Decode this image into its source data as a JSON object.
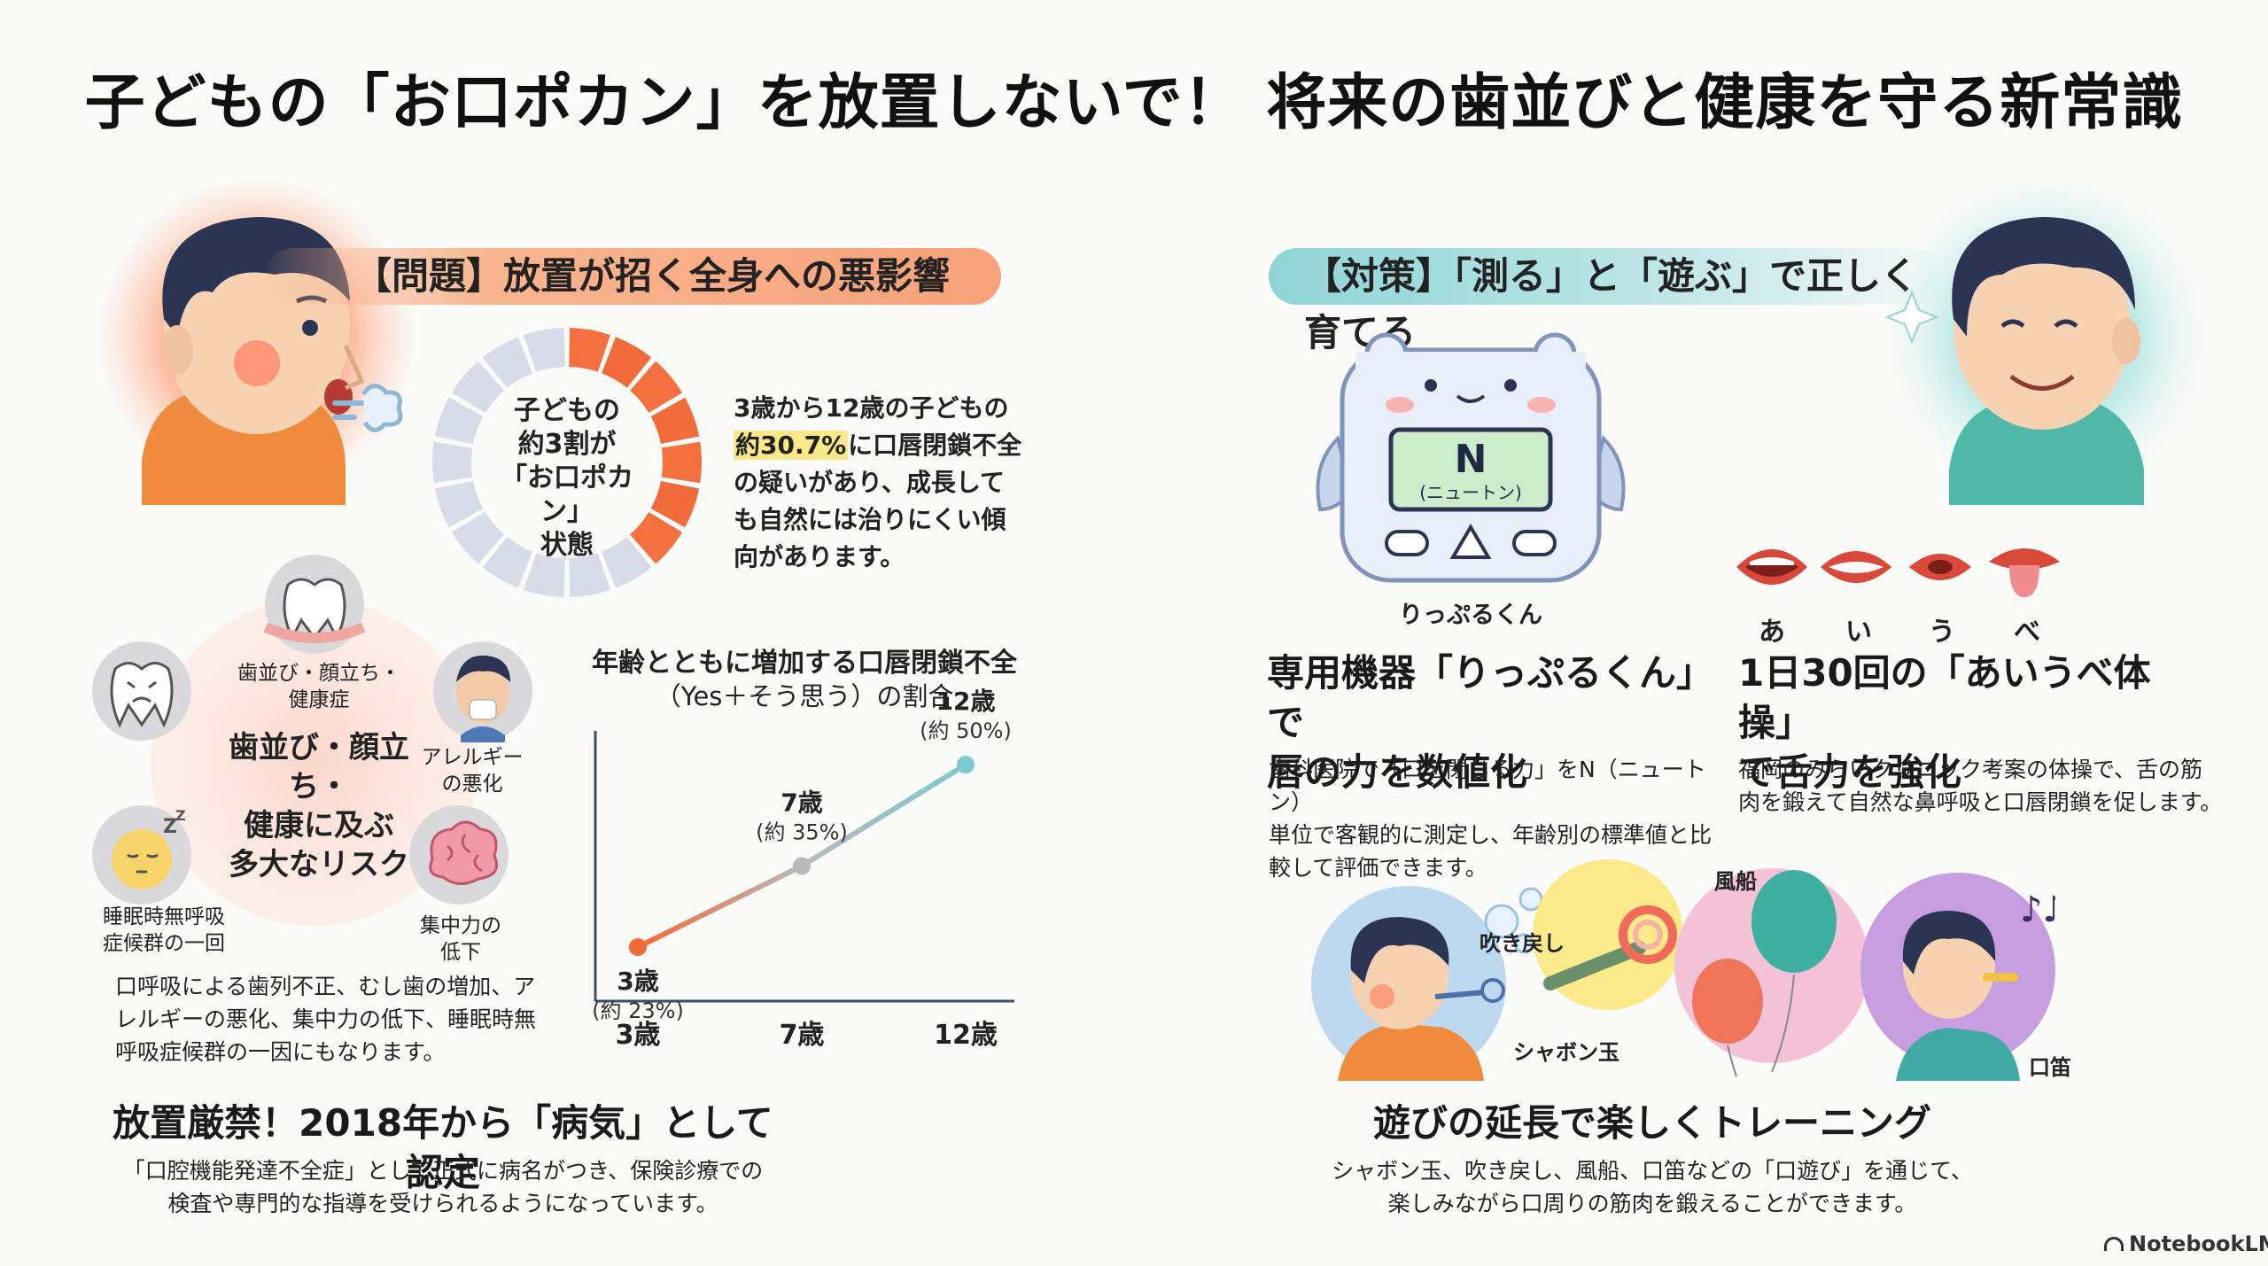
{
  "title": "子どもの「お口ポカン」を放置しないで！ 将来の歯並びと健康を守る新常識",
  "problem": {
    "header": "【問題】放置が招く全身への悪影響",
    "donut_text": [
      "子どもの",
      "約3割が",
      "「お口ポカン」",
      "状態"
    ],
    "donut_share": 0.307,
    "stat_before": "3歳から12歳の子どもの",
    "stat_highlight": "約30.7%",
    "stat_after": "に口唇閉鎖不全の疑いがあり、成長しても自然には治りにくい傾向があります。",
    "risk_center": [
      "歯並び・顔立ち・",
      "健康に及ぶ",
      "多大なリスク"
    ],
    "risk_items": {
      "teeth": [
        "歯並び・顔立ち・",
        "健康症"
      ],
      "allergy": [
        "アレルギー",
        "の悪化"
      ],
      "sleep": [
        "睡眠時無呼吸",
        "症候群の一回"
      ],
      "focus": [
        "集中力の",
        "低下"
      ]
    },
    "risk_desc": "口呼吸による歯列不正、むし歯の増加、アレルギーの悪化、集中力の低下、睡眠時無呼吸症候群の一因にもなります。",
    "disease_title": "放置厳禁！2018年から「病気」として認定",
    "disease_desc": [
      "「口腔機能発達不全症」として正式に病名がつき、保険診療での",
      "検査や専門的な指導を受けられるようになっています。"
    ]
  },
  "chart_data": {
    "type": "line",
    "title": "年齢とともに増加する口唇閉鎖不全",
    "subtitle": "（Yes＋そう思う）の割合",
    "categories": [
      "3歳",
      "7歳",
      "12歳"
    ],
    "values": [
      23,
      35,
      50
    ],
    "point_labels": [
      [
        "3歳",
        "(約 23%)"
      ],
      [
        "7歳",
        "(約 35%)"
      ],
      [
        "12歳",
        "(約 50%)"
      ]
    ],
    "ylim": [
      15,
      55
    ],
    "colors": [
      "#f26b3a",
      "#b9b9b9",
      "#7ec9d0"
    ]
  },
  "solution": {
    "header": "【対策】「測る」と「遊ぶ」で正しく育てる",
    "device_display": "N",
    "device_unit": "(ニュートン)",
    "device_name": "りっぷるくん",
    "device_title": [
      "専用機器「りっぷるくん」で",
      "唇の力を数値化"
    ],
    "device_desc": [
      "歯科医院で「口を閉じる力」をN（ニュートン）",
      "単位で客観的に測定し、年齢別の標準値と比",
      "較して評価できます。"
    ],
    "mouth_labels": [
      "あ",
      "い",
      "う",
      "べ"
    ],
    "exercise_title": [
      "1日30回の「あいうべ体操」",
      "で舌力を強化"
    ],
    "exercise_desc": [
      "福岡のみらいクリニック考案の体操で、舌の筋",
      "肉を鍛えて自然な鼻呼吸と口唇閉鎖を促します。"
    ],
    "play_labels": {
      "bubbles": "シャボン玉",
      "blowout": "吹き戻し",
      "balloon": "風船",
      "whistle": "口笛"
    },
    "play_title": "遊びの延長で楽しくトレーニング",
    "play_desc": [
      "シャボン玉、吹き戻し、風船、口笛などの「口遊び」を通じて、",
      "楽しみながら口周りの筋肉を鍛えることができます。"
    ]
  },
  "footer": {
    "brand": "NotebookLM"
  }
}
